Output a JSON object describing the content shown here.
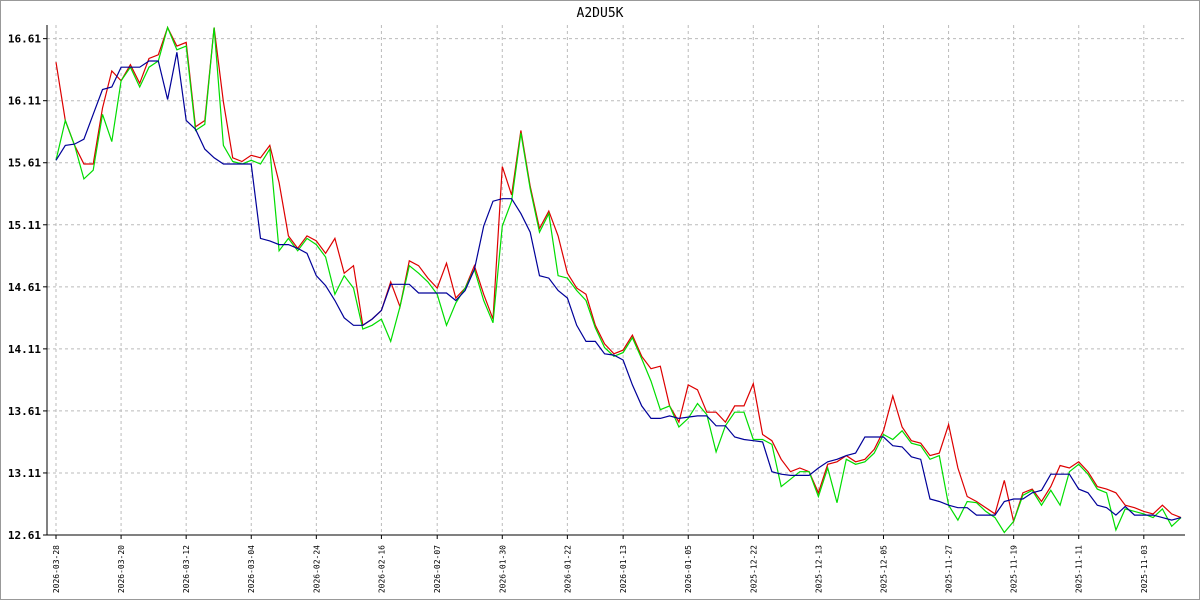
{
  "chart_data": {
    "type": "line",
    "title": "A2DU5K",
    "categories": [
      "2026-03-28",
      null,
      null,
      null,
      null,
      null,
      null,
      "2026-03-20",
      null,
      null,
      null,
      null,
      null,
      null,
      "2026-03-12",
      null,
      null,
      null,
      null,
      null,
      null,
      "2026-03-04",
      null,
      null,
      null,
      null,
      null,
      null,
      "2026-02-24",
      null,
      null,
      null,
      null,
      null,
      null,
      "2026-02-16",
      null,
      null,
      null,
      null,
      null,
      "2026-02-07",
      null,
      null,
      null,
      null,
      null,
      null,
      "2026-01-30",
      null,
      null,
      null,
      null,
      null,
      null,
      "2026-01-22",
      null,
      null,
      null,
      null,
      null,
      "2026-01-13",
      null,
      null,
      null,
      null,
      null,
      null,
      "2026-01-05",
      null,
      null,
      null,
      null,
      null,
      null,
      "2025-12-22",
      null,
      null,
      null,
      null,
      null,
      null,
      "2025-12-13",
      null,
      null,
      null,
      null,
      null,
      null,
      "2025-12-05",
      null,
      null,
      null,
      null,
      null,
      null,
      "2025-11-27",
      null,
      null,
      null,
      null,
      null,
      null,
      "2025-11-19",
      null,
      null,
      null,
      null,
      null,
      null,
      "2025-11-11",
      null,
      null,
      null,
      null,
      null,
      null,
      "2025-11-03",
      null,
      null,
      null,
      null
    ],
    "series": [
      {
        "color": "#dd0000",
        "values": [
          16.42,
          15.95,
          15.75,
          15.6,
          15.6,
          16.05,
          16.35,
          16.27,
          16.4,
          16.25,
          16.45,
          16.48,
          16.7,
          16.55,
          16.58,
          15.9,
          15.95,
          16.7,
          16.1,
          15.65,
          15.62,
          15.67,
          15.65,
          15.75,
          15.45,
          15.02,
          14.92,
          15.02,
          14.98,
          14.88,
          15.0,
          14.72,
          14.78,
          14.3,
          14.35,
          14.42,
          14.65,
          14.45,
          14.82,
          14.78,
          14.68,
          14.6,
          14.8,
          14.52,
          14.6,
          14.78,
          14.55,
          14.35,
          15.58,
          15.35,
          15.87,
          15.42,
          15.08,
          15.22,
          15.02,
          14.72,
          14.6,
          14.55,
          14.3,
          14.15,
          14.07,
          14.1,
          14.22,
          14.05,
          13.95,
          13.97,
          13.65,
          13.52,
          13.82,
          13.78,
          13.6,
          13.6,
          13.52,
          13.65,
          13.65,
          13.83,
          13.42,
          13.37,
          13.22,
          13.12,
          13.15,
          13.12,
          12.95,
          13.18,
          13.2,
          13.25,
          13.2,
          13.22,
          13.3,
          13.45,
          13.73,
          13.48,
          13.37,
          13.35,
          13.25,
          13.27,
          13.5,
          13.15,
          12.92,
          12.88,
          12.83,
          12.78,
          13.05,
          12.72,
          12.95,
          12.98,
          12.88,
          13.0,
          13.17,
          13.15,
          13.2,
          13.12,
          13.0,
          12.98,
          12.95,
          12.85,
          12.83,
          12.8,
          12.78,
          12.85,
          12.78,
          12.75
        ]
      },
      {
        "color": "#00dd00",
        "values": [
          15.63,
          15.95,
          15.75,
          15.48,
          15.55,
          16.0,
          15.78,
          16.27,
          16.38,
          16.22,
          16.38,
          16.43,
          16.7,
          16.52,
          16.55,
          15.87,
          15.92,
          16.7,
          15.75,
          15.62,
          15.6,
          15.63,
          15.6,
          15.72,
          14.9,
          15.0,
          14.9,
          15.0,
          14.95,
          14.85,
          14.55,
          14.7,
          14.6,
          14.27,
          14.3,
          14.35,
          14.17,
          14.45,
          14.78,
          14.72,
          14.65,
          14.55,
          14.3,
          14.48,
          14.6,
          14.75,
          14.5,
          14.32,
          15.1,
          15.3,
          15.85,
          15.4,
          15.05,
          15.2,
          14.7,
          14.68,
          14.58,
          14.5,
          14.28,
          14.12,
          14.05,
          14.08,
          14.2,
          14.03,
          13.85,
          13.62,
          13.65,
          13.48,
          13.55,
          13.67,
          13.58,
          13.28,
          13.49,
          13.6,
          13.6,
          13.38,
          13.38,
          13.34,
          13.0,
          13.06,
          13.12,
          13.12,
          12.92,
          13.15,
          12.87,
          13.22,
          13.18,
          13.2,
          13.27,
          13.42,
          13.38,
          13.45,
          13.35,
          13.33,
          13.22,
          13.25,
          12.85,
          12.73,
          12.88,
          12.87,
          12.8,
          12.75,
          12.63,
          12.72,
          12.93,
          12.97,
          12.85,
          12.97,
          12.85,
          13.12,
          13.18,
          13.1,
          12.98,
          12.95,
          12.65,
          12.82,
          12.8,
          12.78,
          12.75,
          12.82,
          12.68,
          12.75
        ]
      },
      {
        "color": "#000099",
        "values": [
          15.63,
          15.75,
          15.76,
          15.8,
          16.0,
          16.2,
          16.22,
          16.38,
          16.38,
          16.38,
          16.43,
          16.43,
          16.12,
          16.5,
          15.95,
          15.88,
          15.72,
          15.65,
          15.6,
          15.6,
          15.6,
          15.6,
          15.0,
          14.98,
          14.95,
          14.95,
          14.92,
          14.88,
          14.7,
          14.62,
          14.5,
          14.36,
          14.3,
          14.3,
          14.35,
          14.42,
          14.63,
          14.63,
          14.63,
          14.56,
          14.56,
          14.56,
          14.56,
          14.5,
          14.58,
          14.75,
          15.1,
          15.3,
          15.32,
          15.32,
          15.2,
          15.05,
          14.7,
          14.68,
          14.58,
          14.52,
          14.3,
          14.17,
          14.17,
          14.07,
          14.06,
          14.02,
          13.82,
          13.65,
          13.55,
          13.55,
          13.57,
          13.55,
          13.56,
          13.57,
          13.57,
          13.49,
          13.49,
          13.4,
          13.38,
          13.37,
          13.36,
          13.12,
          13.1,
          13.09,
          13.09,
          13.09,
          13.15,
          13.2,
          13.22,
          13.25,
          13.27,
          13.4,
          13.4,
          13.4,
          13.33,
          13.32,
          13.24,
          13.22,
          12.9,
          12.88,
          12.85,
          12.83,
          12.83,
          12.77,
          12.77,
          12.77,
          12.88,
          12.9,
          12.9,
          12.95,
          12.97,
          13.1,
          13.1,
          13.1,
          12.98,
          12.95,
          12.85,
          12.83,
          12.77,
          12.84,
          12.77,
          12.77,
          12.77,
          12.75,
          12.73,
          12.75
        ]
      }
    ],
    "ylim": [
      12.61,
      16.72
    ],
    "yticks": [
      12.61,
      13.11,
      13.61,
      14.11,
      14.61,
      15.11,
      15.61,
      16.11,
      16.61
    ],
    "grid": true
  }
}
